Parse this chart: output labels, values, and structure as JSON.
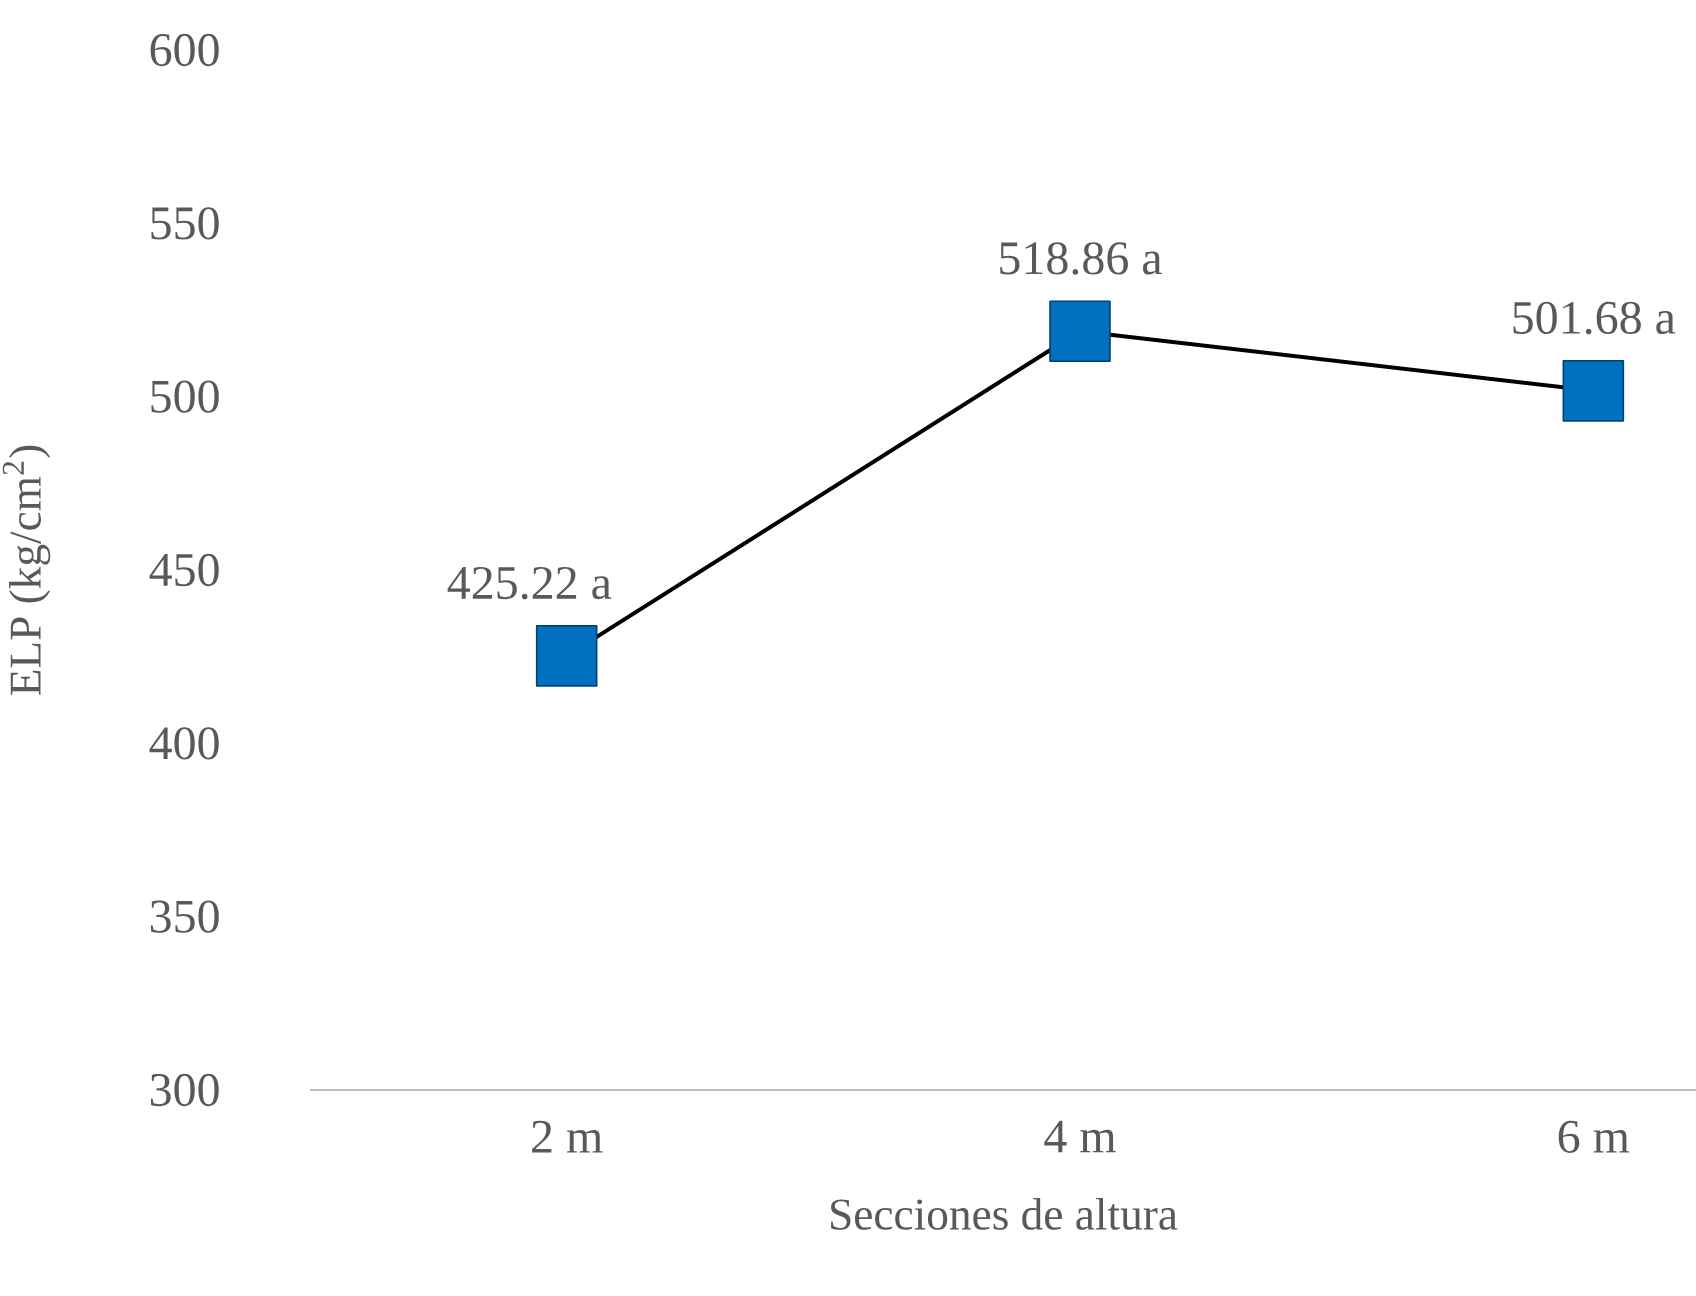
{
  "chart_data": {
    "type": "line",
    "xlabel": "Secciones de altura",
    "ylabel": "ELP (kg/cm$^{2}$)",
    "categories": [
      "2 m",
      "4 m",
      "6 m"
    ],
    "series": [
      {
        "color": "#000000",
        "values": [
          425.22,
          518.86,
          501.68
        ],
        "value_labels": [
          "425.22 a",
          "518.86 a",
          "501.68 a"
        ]
      }
    ],
    "marker": "square",
    "ylim": [
      300,
      600
    ],
    "yticks": [
      300,
      350,
      400,
      450,
      500,
      550,
      600
    ],
    "grid": false
  }
}
